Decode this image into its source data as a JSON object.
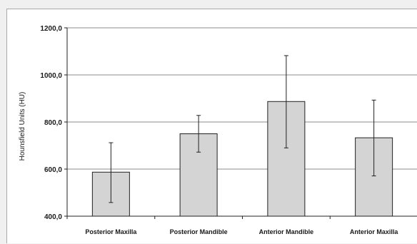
{
  "chart_data": {
    "type": "bar",
    "title": "",
    "xlabel": "",
    "ylabel": "Hounsfield Units (HU)",
    "ylim": [
      400,
      1200
    ],
    "yticks": [
      "400,0",
      "600,0",
      "800,0",
      "1000,0",
      "1200,0"
    ],
    "ytick_values": [
      400,
      600,
      800,
      1000,
      1200
    ],
    "grid": true,
    "categories": [
      "Posterior Maxilla",
      "Posterior Mandible",
      "Anterior Mandible",
      "Anterior Maxilla"
    ],
    "values": [
      587,
      750,
      887,
      733
    ],
    "error_low": [
      458,
      672,
      690,
      571
    ],
    "error_high": [
      712,
      828,
      1082,
      893
    ],
    "colors": {
      "bar_fill": "#d4d4d4",
      "bar_stroke": "#222222",
      "grid": "#8c8c8c",
      "axis": "#222222",
      "error_bar": "#222222"
    }
  }
}
